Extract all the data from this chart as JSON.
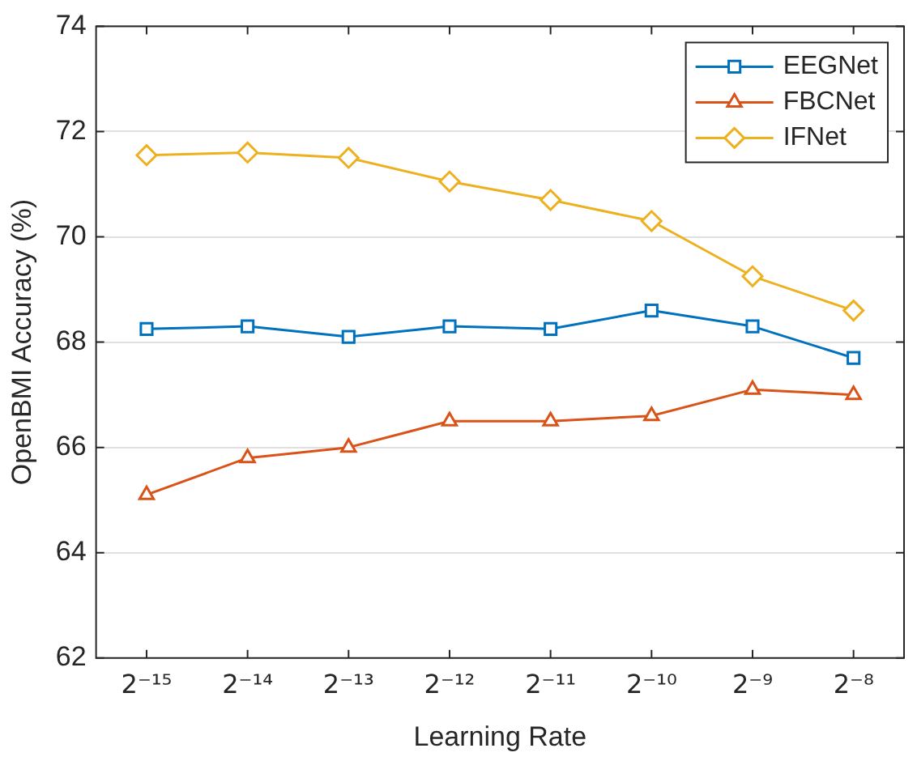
{
  "chart_data": {
    "type": "line",
    "xlabel": "Learning Rate",
    "ylabel": "OpenBMI Accuracy (%)",
    "categories": [
      "2⁻¹⁵",
      "2⁻¹⁴",
      "2⁻¹³",
      "2⁻¹²",
      "2⁻¹¹",
      "2⁻¹⁰",
      "2⁻⁹",
      "2⁻⁸"
    ],
    "series": [
      {
        "name": "EEGNet",
        "color": "#0072bd",
        "marker": "square",
        "values": [
          68.25,
          68.3,
          68.1,
          68.3,
          68.25,
          68.6,
          68.3,
          67.7
        ]
      },
      {
        "name": "FBCNet",
        "color": "#d95319",
        "marker": "triangle",
        "values": [
          65.1,
          65.8,
          66.0,
          66.5,
          66.5,
          66.6,
          67.1,
          67.0
        ]
      },
      {
        "name": "IFNet",
        "color": "#edb120",
        "marker": "diamond",
        "values": [
          71.55,
          71.6,
          71.5,
          71.05,
          70.7,
          70.3,
          69.25,
          68.6
        ]
      }
    ],
    "ylim": [
      62,
      74
    ],
    "yticks": [
      62,
      64,
      66,
      68,
      70,
      72,
      74
    ],
    "grid": "y",
    "legend": "top right",
    "line_style": "solid"
  }
}
